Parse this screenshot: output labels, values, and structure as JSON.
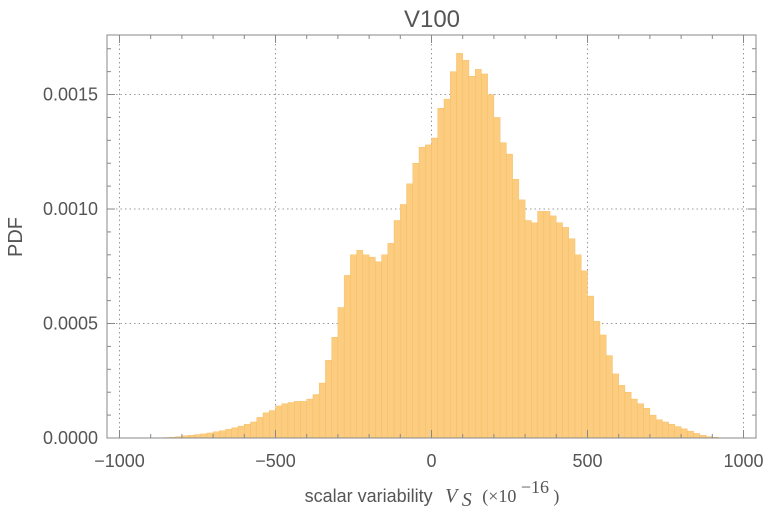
{
  "chart_data": {
    "type": "bar",
    "subtype": "histogram",
    "title": "V100",
    "xlabel": {
      "text": "scalar variability",
      "symbol": "V",
      "subscript": "S",
      "unit_prefix": "(×10",
      "unit_exponent": "−16",
      "unit_suffix": ")"
    },
    "ylabel": "PDF",
    "xlim": [
      -1040,
      1040
    ],
    "ylim": [
      0,
      0.00176
    ],
    "x_ticks": [
      -1000,
      -500,
      0,
      500,
      1000
    ],
    "x_tick_labels": [
      "−1000",
      "−500",
      "0",
      "500",
      "1000"
    ],
    "y_ticks": [
      0,
      0.0005,
      0.001,
      0.0015
    ],
    "y_tick_labels": [
      "0.0000",
      "0.0005",
      "0.0010",
      "0.0015"
    ],
    "grid": true,
    "bin_width": 20,
    "bin_start": -860,
    "bar_color": "#fccd80",
    "bar_edge_color": "#f5b955",
    "values": [
      2e-06,
      3e-06,
      6e-06,
      1e-05,
      1.2e-05,
      1.5e-05,
      1.8e-05,
      2.2e-05,
      2.7e-05,
      3.2e-05,
      3.8e-05,
      4.5e-05,
      5.2e-05,
      6e-05,
      7e-05,
      9e-05,
      0.00011,
      0.00012,
      0.00014,
      0.00015,
      0.000155,
      0.00016,
      0.00016,
      0.00017,
      0.00019,
      0.00024,
      0.00034,
      0.00044,
      0.00057,
      0.00071,
      0.0008,
      0.00082,
      0.0008,
      0.00079,
      0.00077,
      0.0008,
      0.00085,
      0.00095,
      0.00102,
      0.00111,
      0.0012,
      0.00127,
      0.00128,
      0.00131,
      0.00144,
      0.00148,
      0.0016,
      0.00168,
      0.00165,
      0.00158,
      0.00161,
      0.00159,
      0.0015,
      0.0014,
      0.00129,
      0.00124,
      0.00113,
      0.00104,
      0.00095,
      0.00094,
      0.00099,
      0.00099,
      0.00097,
      0.00094,
      0.00092,
      0.00087,
      0.0008,
      0.00073,
      0.00062,
      0.00051,
      0.00045,
      0.00036,
      0.00028,
      0.00023,
      0.0002,
      0.00017,
      0.00015,
      0.00013,
      0.0001,
      8e-05,
      7e-05,
      6e-05,
      5e-05,
      4e-05,
      3e-05,
      2e-05,
      1.2e-05,
      6e-06,
      3e-06
    ]
  }
}
